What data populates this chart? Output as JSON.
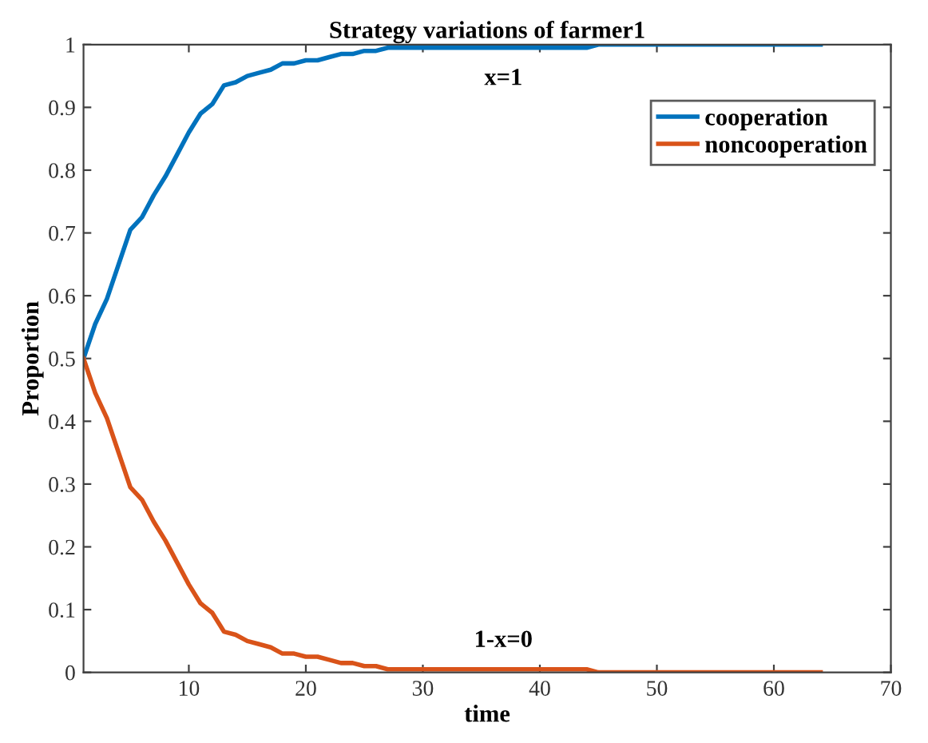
{
  "chart_data": {
    "type": "line",
    "title": "Strategy variations of farmer1",
    "xlabel": "time",
    "ylabel": "Proportion",
    "xlim": [
      1,
      70
    ],
    "xticks": [
      10,
      20,
      30,
      40,
      50,
      60,
      70
    ],
    "ylim": [
      0,
      1
    ],
    "yticks": [
      0,
      0.1,
      0.2,
      0.3,
      0.4,
      0.5,
      0.6,
      0.7,
      0.8,
      0.9,
      1
    ],
    "x": [
      1,
      2,
      3,
      4,
      5,
      6,
      7,
      8,
      9,
      10,
      11,
      12,
      13,
      14,
      15,
      16,
      17,
      18,
      19,
      20,
      21,
      22,
      23,
      24,
      25,
      26,
      27,
      44,
      45,
      64
    ],
    "series": [
      {
        "name": "cooperation",
        "color": "#0072bd",
        "values": [
          0.5,
          0.555,
          0.595,
          0.65,
          0.705,
          0.725,
          0.76,
          0.79,
          0.825,
          0.86,
          0.89,
          0.905,
          0.935,
          0.94,
          0.95,
          0.955,
          0.96,
          0.97,
          0.97,
          0.975,
          0.975,
          0.98,
          0.985,
          0.985,
          0.99,
          0.99,
          0.995,
          0.995,
          1,
          1
        ]
      },
      {
        "name": "noncooperation",
        "color": "#d95319",
        "values": [
          0.5,
          0.445,
          0.405,
          0.35,
          0.295,
          0.275,
          0.24,
          0.21,
          0.175,
          0.14,
          0.11,
          0.095,
          0.065,
          0.06,
          0.05,
          0.045,
          0.04,
          0.03,
          0.03,
          0.025,
          0.025,
          0.02,
          0.015,
          0.015,
          0.01,
          0.01,
          0.005,
          0.005,
          0,
          0
        ]
      }
    ],
    "annotations": [
      "x=1",
      "1-x=0"
    ],
    "legend": "top right",
    "grid": false,
    "marker": "none",
    "line_style": "solid"
  }
}
